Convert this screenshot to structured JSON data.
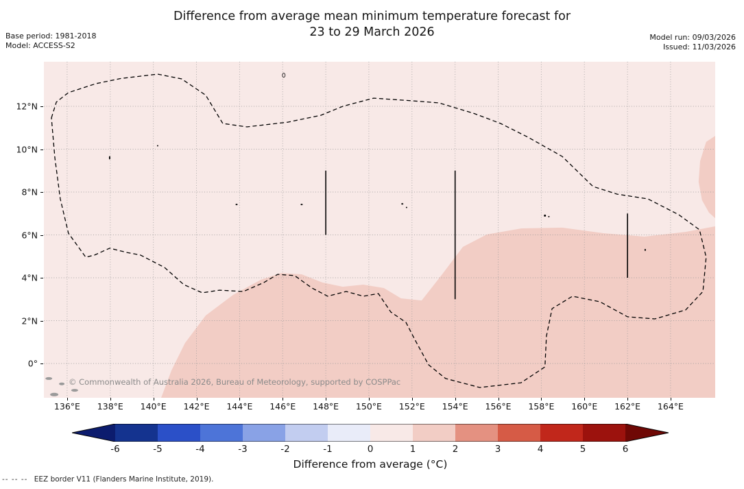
{
  "header": {
    "title_line1": "Difference from average mean minimum temperature forecast for",
    "title_line2": "23 to 29 March 2026",
    "base_period": "Base period: 1981-2018",
    "model": "Model: ACCESS-S2",
    "model_run": "Model run: 09/03/2026",
    "issued": "Issued: 11/03/2026"
  },
  "footnote": {
    "dashes": "--  --  --",
    "text": "EEZ border V11 (Flanders Marine Institute, 2019)."
  },
  "chart_data": {
    "type": "heatmap",
    "subtype": "filled_contour_anomaly_map",
    "title": "Difference from average mean minimum temperature forecast for 23 to 29 March 2026",
    "base_period": "1981-2018",
    "model": "ACCESS-S2",
    "model_run": "09/03/2026",
    "issued": "11/03/2026",
    "watermark": "© Commonwealth of Australia 2026, Bureau of Meteorology, supported by COSPPac",
    "x_axis": {
      "unit": "degrees east",
      "range": [
        134.92,
        166.07
      ],
      "ticks": [
        {
          "v": 136,
          "label": "136°E"
        },
        {
          "v": 138,
          "label": "138°E"
        },
        {
          "v": 140,
          "label": "140°E"
        },
        {
          "v": 142,
          "label": "142°E"
        },
        {
          "v": 144,
          "label": "144°E"
        },
        {
          "v": 146,
          "label": "146°E"
        },
        {
          "v": 148,
          "label": "148°E"
        },
        {
          "v": 150,
          "label": "150°E"
        },
        {
          "v": 152,
          "label": "152°E"
        },
        {
          "v": 154,
          "label": "154°E"
        },
        {
          "v": 156,
          "label": "156°E"
        },
        {
          "v": 158,
          "label": "158°E"
        },
        {
          "v": 160,
          "label": "160°E"
        },
        {
          "v": 162,
          "label": "162°E"
        },
        {
          "v": 164,
          "label": "164°E"
        }
      ]
    },
    "y_axis": {
      "unit": "degrees north",
      "range": [
        -1.6,
        14.08
      ],
      "ticks": [
        {
          "v": 0,
          "label": "0°"
        },
        {
          "v": 2,
          "label": "2°N"
        },
        {
          "v": 4,
          "label": "4°N"
        },
        {
          "v": 6,
          "label": "6°N"
        },
        {
          "v": 8,
          "label": "8°N"
        },
        {
          "v": 10,
          "label": "10°N"
        },
        {
          "v": 12,
          "label": "12°N"
        }
      ]
    },
    "grid": true,
    "background_band": {
      "value_range_c": [
        0,
        1
      ],
      "color": "#f8e9e7"
    },
    "regions": [
      {
        "name": "anomaly-band-1-to-2C-main",
        "value_range_c": [
          1,
          2
        ],
        "color": "#f2cdc5",
        "points": [
          [
            140.36,
            -1.6
          ],
          [
            140.84,
            -0.32
          ],
          [
            141.47,
            0.96
          ],
          [
            142.43,
            2.24
          ],
          [
            143.7,
            3.2
          ],
          [
            144.97,
            3.9
          ],
          [
            145.93,
            4.22
          ],
          [
            146.88,
            4.16
          ],
          [
            147.84,
            3.78
          ],
          [
            148.79,
            3.58
          ],
          [
            149.74,
            3.68
          ],
          [
            150.7,
            3.52
          ],
          [
            151.49,
            3.04
          ],
          [
            152.45,
            2.94
          ],
          [
            153.4,
            4.16
          ],
          [
            154.36,
            5.44
          ],
          [
            155.47,
            6.02
          ],
          [
            157.06,
            6.3
          ],
          [
            158.97,
            6.34
          ],
          [
            160.88,
            6.08
          ],
          [
            162.79,
            5.92
          ],
          [
            164.7,
            6.14
          ],
          [
            166.07,
            6.4
          ],
          [
            166.07,
            -1.6
          ]
        ]
      },
      {
        "name": "anomaly-band-1-to-2C-northeast-lobe",
        "value_range_c": [
          1,
          2
        ],
        "color": "#f2cdc5",
        "points": [
          [
            166.07,
            10.62
          ],
          [
            165.65,
            10.34
          ],
          [
            165.37,
            9.44
          ],
          [
            165.3,
            8.48
          ],
          [
            165.46,
            7.62
          ],
          [
            165.78,
            7.04
          ],
          [
            166.07,
            6.78
          ]
        ]
      }
    ],
    "eez_border": {
      "style": "dashed",
      "color": "#000000",
      "points": [
        [
          135.27,
          11.46
        ],
        [
          135.5,
          12.2
        ],
        [
          136.06,
          12.64
        ],
        [
          137.34,
          13.06
        ],
        [
          138.5,
          13.3
        ],
        [
          140.2,
          13.5
        ],
        [
          141.31,
          13.28
        ],
        [
          142.43,
          12.52
        ],
        [
          143.22,
          11.2
        ],
        [
          144.34,
          11.04
        ],
        [
          146.24,
          11.26
        ],
        [
          147.77,
          11.58
        ],
        [
          148.79,
          12.0
        ],
        [
          150.22,
          12.38
        ],
        [
          151.97,
          12.26
        ],
        [
          153.25,
          12.16
        ],
        [
          154.84,
          11.68
        ],
        [
          156.11,
          11.2
        ],
        [
          157.38,
          10.56
        ],
        [
          158.97,
          9.66
        ],
        [
          160.4,
          8.26
        ],
        [
          161.52,
          7.9
        ],
        [
          162.95,
          7.68
        ],
        [
          164.38,
          6.94
        ],
        [
          165.34,
          6.24
        ],
        [
          165.65,
          4.96
        ],
        [
          165.5,
          3.36
        ],
        [
          164.7,
          2.5
        ],
        [
          163.27,
          2.08
        ],
        [
          162.0,
          2.18
        ],
        [
          160.72,
          2.88
        ],
        [
          159.45,
          3.14
        ],
        [
          158.5,
          2.56
        ],
        [
          158.24,
          1.28
        ],
        [
          158.17,
          -0.16
        ],
        [
          157.06,
          -0.9
        ],
        [
          155.15,
          -1.12
        ],
        [
          153.56,
          -0.7
        ],
        [
          152.77,
          -0.06
        ],
        [
          152.13,
          1.12
        ],
        [
          151.72,
          1.92
        ],
        [
          151.02,
          2.4
        ],
        [
          150.44,
          3.26
        ],
        [
          149.74,
          3.14
        ],
        [
          148.95,
          3.36
        ],
        [
          148.09,
          3.14
        ],
        [
          147.36,
          3.52
        ],
        [
          146.56,
          4.1
        ],
        [
          145.77,
          4.16
        ],
        [
          145.13,
          3.78
        ],
        [
          144.18,
          3.36
        ],
        [
          143.06,
          3.42
        ],
        [
          142.27,
          3.3
        ],
        [
          141.41,
          3.68
        ],
        [
          140.52,
          4.48
        ],
        [
          139.4,
          5.06
        ],
        [
          138.77,
          5.18
        ],
        [
          137.97,
          5.38
        ],
        [
          137.27,
          5.06
        ],
        [
          136.86,
          4.96
        ],
        [
          136.06,
          6.08
        ],
        [
          135.68,
          7.68
        ],
        [
          135.43,
          9.6
        ]
      ]
    },
    "station_lines": [
      {
        "lon": 148,
        "lat_range": [
          6,
          9
        ]
      },
      {
        "lon": 154,
        "lat_range": [
          3,
          9
        ]
      },
      {
        "lon": 162,
        "lat_range": [
          4,
          7
        ]
      }
    ],
    "islands": [
      {
        "lon": 137.97,
        "lat": 9.6,
        "rx": 1,
        "ry": 2.5,
        "fill": "#000000"
      },
      {
        "lon": 140.2,
        "lat": 10.16,
        "rx": 1,
        "ry": 1,
        "fill": "#000000"
      },
      {
        "lon": 143.86,
        "lat": 7.42,
        "rx": 1.5,
        "ry": 1,
        "fill": "#000000"
      },
      {
        "lon": 146.88,
        "lat": 7.42,
        "rx": 1.5,
        "ry": 1,
        "fill": "#000000"
      },
      {
        "lon": 151.55,
        "lat": 7.45,
        "rx": 1.5,
        "ry": 1,
        "fill": "#000000"
      },
      {
        "lon": 151.75,
        "lat": 7.28,
        "rx": 1,
        "ry": 1,
        "fill": "#000000"
      },
      {
        "lon": 158.17,
        "lat": 6.9,
        "rx": 1.5,
        "ry": 1.5,
        "fill": "#000000"
      },
      {
        "lon": 158.35,
        "lat": 6.85,
        "rx": 1,
        "ry": 1,
        "fill": "#000000"
      },
      {
        "lon": 162.82,
        "lat": 5.3,
        "rx": 1,
        "ry": 1.5,
        "fill": "#000000"
      },
      {
        "lon": 146.05,
        "lat": 13.45,
        "rx": 2,
        "ry": 3,
        "fill": "none",
        "stroke": "#000000"
      },
      {
        "lon": 135.15,
        "lat": -0.7,
        "rx": 5,
        "ry": 2,
        "fill": "#9a9a9a"
      },
      {
        "lon": 135.75,
        "lat": -0.95,
        "rx": 4,
        "ry": 2,
        "fill": "#9a9a9a"
      },
      {
        "lon": 136.35,
        "lat": -1.25,
        "rx": 5,
        "ry": 2,
        "fill": "#9a9a9a"
      },
      {
        "lon": 135.4,
        "lat": -1.45,
        "rx": 6,
        "ry": 2.5,
        "fill": "#9a9a9a"
      }
    ],
    "colorbar": {
      "label": "Difference from average (°C)",
      "ticks": [
        -6,
        -5,
        -4,
        -3,
        -2,
        -1,
        0,
        1,
        2,
        3,
        4,
        5,
        6
      ],
      "segment_colors": [
        "#14338f",
        "#2b50c8",
        "#4d74d8",
        "#89a2e6",
        "#c2cdf0",
        "#e9ecf9",
        "#f8e9e7",
        "#f2cdc5",
        "#e49181",
        "#d65b46",
        "#c1271b",
        "#9c120d"
      ],
      "arrow_left_color": "#0c1c6e",
      "arrow_right_color": "#6f0805",
      "extend": "both"
    }
  }
}
